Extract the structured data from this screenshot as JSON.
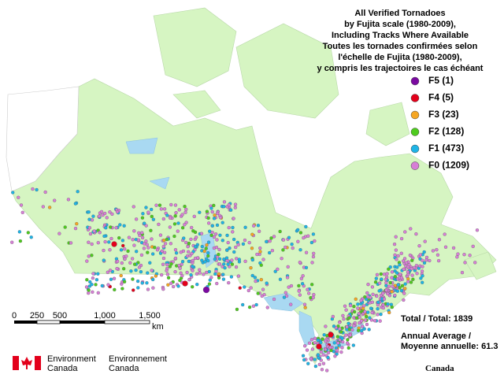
{
  "title": [
    "All Verified Tornadoes",
    "by Fujita scale (1980-2009),",
    "Including Tracks Where Available",
    "Toutes les tornades confirmées selon",
    "l'échelle de Fujita (1980-2009),",
    "y compris les trajectoires le cas échéant"
  ],
  "legend": [
    {
      "label": "F5 (1)",
      "color": "#7a0aa0"
    },
    {
      "label": "F4 (5)",
      "color": "#e3001b"
    },
    {
      "label": "F3 (23)",
      "color": "#f5a623"
    },
    {
      "label": "F2 (128)",
      "color": "#4ecb1e"
    },
    {
      "label": "F1 (473)",
      "color": "#1eb4e6"
    },
    {
      "label": "F0 (1209)",
      "color": "#d77fd6"
    }
  ],
  "scale_bar": {
    "labels": [
      "0",
      "250",
      "500",
      "1,000",
      "1,500"
    ],
    "unit": "km"
  },
  "total": "Total / Total: 1839",
  "annual_average": [
    "Annual Average /",
    "Moyenne annuelle: 61.3"
  ],
  "logo": {
    "english": [
      "Environment",
      "Canada"
    ],
    "french": [
      "Environnement",
      "Canada"
    ],
    "wordmark": "Canada"
  }
}
